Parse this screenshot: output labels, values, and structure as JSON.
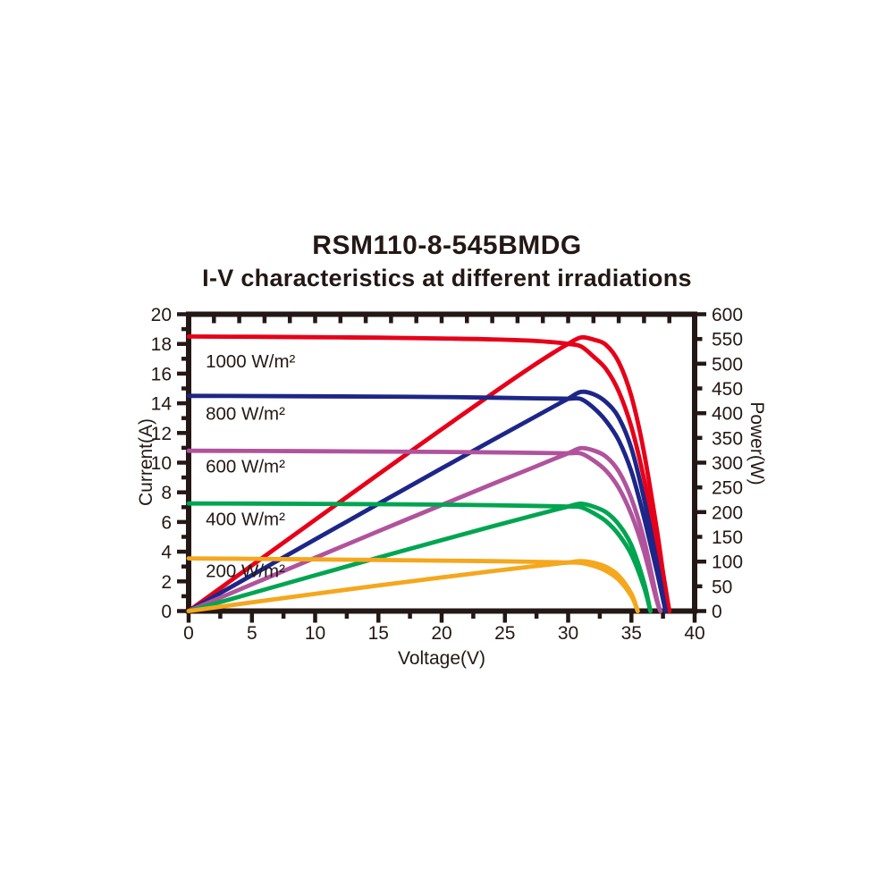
{
  "title": "RSM110-8-545BMDG",
  "subtitle": "I-V characteristics at different irradiations",
  "chart_data": {
    "type": "line",
    "title": "RSM110-8-545BMDG",
    "subtitle": "I-V characteristics at different irradiations",
    "xlabel": "Voltage(V)",
    "ylabel_left": "Current(A)",
    "ylabel_right": "Power(W)",
    "xlim": [
      0,
      40
    ],
    "ylim_left": [
      0,
      20
    ],
    "ylim_right": [
      0,
      600
    ],
    "grid": false,
    "frame_color": "#231815",
    "x_major_ticks": [
      0,
      5,
      10,
      15,
      20,
      25,
      30,
      35,
      40
    ],
    "x_minor_step": 2.5,
    "top_tick_step": 2,
    "y_left_major_ticks": [
      0,
      2,
      4,
      6,
      8,
      10,
      12,
      14,
      16,
      18,
      20
    ],
    "y_left_minor_step": 1,
    "y_right_ticks": [
      0,
      50,
      100,
      150,
      200,
      250,
      300,
      350,
      400,
      450,
      500,
      550,
      600
    ],
    "y_right_major_step": 100,
    "power_axis_watts_per_current_unit": 30,
    "curves_note": "Each irradiance has two curves of the same color: an I-V curve (current vs voltage, left axis) and a P-V curve (power = V x I, right axis) rising from the origin, peaking near 31 V, and falling to zero at Voc.",
    "series": [
      {
        "name": "1000 W/m²",
        "irradiance_w_m2": 1000,
        "color": "#e60019",
        "isc_a": 18.5,
        "voc_v": 38.0,
        "pmax_w": 553,
        "vmp_v": 31,
        "label_pos": {
          "v": 1.35,
          "i": 16.85
        },
        "iv_points": [
          [
            0,
            18.5
          ],
          [
            5,
            18.48
          ],
          [
            10,
            18.45
          ],
          [
            15,
            18.42
          ],
          [
            20,
            18.37
          ],
          [
            24,
            18.31
          ],
          [
            27,
            18.22
          ],
          [
            29,
            18.1
          ],
          [
            30,
            18.0
          ],
          [
            31,
            17.84
          ],
          [
            32,
            17.15
          ],
          [
            33,
            16.3
          ],
          [
            34,
            14.8
          ],
          [
            35,
            12.4
          ],
          [
            36,
            8.9
          ],
          [
            37,
            4.5
          ],
          [
            37.5,
            2.1
          ],
          [
            38,
            0
          ]
        ],
        "pv_points": [
          [
            0,
            0
          ],
          [
            5,
            92.4
          ],
          [
            10,
            184.5
          ],
          [
            15,
            276.3
          ],
          [
            20,
            367.4
          ],
          [
            24,
            439.4
          ],
          [
            27,
            491.9
          ],
          [
            29,
            524.9
          ],
          [
            30,
            540.0
          ],
          [
            31,
            553.0
          ],
          [
            32,
            548.8
          ],
          [
            33,
            537.9
          ],
          [
            34,
            503.2
          ],
          [
            35,
            434.0
          ],
          [
            36,
            320.4
          ],
          [
            37,
            166.5
          ],
          [
            37.5,
            78.8
          ],
          [
            38,
            0
          ]
        ]
      },
      {
        "name": "800 W/m²",
        "irradiance_w_m2": 800,
        "color": "#1d2688",
        "isc_a": 14.5,
        "voc_v": 37.7,
        "pmax_w": 443,
        "vmp_v": 31,
        "label_pos": {
          "v": 1.35,
          "i": 13.3
        },
        "iv_points": [
          [
            0,
            14.5
          ],
          [
            5,
            14.49
          ],
          [
            10,
            14.47
          ],
          [
            15,
            14.45
          ],
          [
            20,
            14.42
          ],
          [
            24,
            14.38
          ],
          [
            27,
            14.34
          ],
          [
            29,
            14.32
          ],
          [
            30,
            14.31
          ],
          [
            31,
            14.29
          ],
          [
            32,
            13.7
          ],
          [
            33,
            12.8
          ],
          [
            34,
            11.5
          ],
          [
            35,
            9.4
          ],
          [
            36,
            6.3
          ],
          [
            37,
            2.7
          ],
          [
            37.7,
            0
          ]
        ],
        "pv_points": [
          [
            0,
            0
          ],
          [
            5,
            72.5
          ],
          [
            10,
            144.7
          ],
          [
            15,
            216.8
          ],
          [
            20,
            288.4
          ],
          [
            24,
            345.1
          ],
          [
            27,
            387.2
          ],
          [
            29,
            415.3
          ],
          [
            30,
            429.3
          ],
          [
            31,
            443.0
          ],
          [
            32,
            438.4
          ],
          [
            33,
            422.4
          ],
          [
            34,
            391.0
          ],
          [
            35,
            329.0
          ],
          [
            36,
            226.8
          ],
          [
            37,
            99.9
          ],
          [
            37.7,
            0
          ]
        ]
      },
      {
        "name": "600 W/m²",
        "irradiance_w_m2": 600,
        "color": "#b0539c",
        "isc_a": 10.8,
        "voc_v": 37.3,
        "pmax_w": 329,
        "vmp_v": 31,
        "label_pos": {
          "v": 1.35,
          "i": 9.75
        },
        "iv_points": [
          [
            0,
            10.8
          ],
          [
            5,
            10.79
          ],
          [
            10,
            10.77
          ],
          [
            15,
            10.75
          ],
          [
            20,
            10.72
          ],
          [
            24,
            10.69
          ],
          [
            27,
            10.66
          ],
          [
            29,
            10.64
          ],
          [
            30,
            10.63
          ],
          [
            31,
            10.62
          ],
          [
            32,
            10.15
          ],
          [
            33,
            9.45
          ],
          [
            34,
            8.3
          ],
          [
            35,
            6.5
          ],
          [
            36,
            4.0
          ],
          [
            37,
            0.7
          ],
          [
            37.3,
            0
          ]
        ],
        "pv_points": [
          [
            0,
            0
          ],
          [
            5,
            54.0
          ],
          [
            10,
            107.7
          ],
          [
            15,
            161.3
          ],
          [
            20,
            214.4
          ],
          [
            24,
            256.6
          ],
          [
            27,
            287.8
          ],
          [
            29,
            308.6
          ],
          [
            30,
            318.9
          ],
          [
            31,
            329.2
          ],
          [
            32,
            324.8
          ],
          [
            33,
            311.9
          ],
          [
            34,
            282.2
          ],
          [
            35,
            227.5
          ],
          [
            36,
            144.0
          ],
          [
            37,
            25.9
          ],
          [
            37.3,
            0
          ]
        ]
      },
      {
        "name": "400 W/m²",
        "irradiance_w_m2": 400,
        "color": "#00a551",
        "isc_a": 7.25,
        "voc_v": 36.5,
        "pmax_w": 217,
        "vmp_v": 31,
        "label_pos": {
          "v": 1.35,
          "i": 6.2
        },
        "iv_points": [
          [
            0,
            7.25
          ],
          [
            5,
            7.24
          ],
          [
            10,
            7.22
          ],
          [
            15,
            7.2
          ],
          [
            20,
            7.17
          ],
          [
            24,
            7.13
          ],
          [
            27,
            7.09
          ],
          [
            29,
            7.06
          ],
          [
            30,
            7.04
          ],
          [
            31,
            7.0
          ],
          [
            32,
            6.6
          ],
          [
            33,
            6.05
          ],
          [
            34,
            5.15
          ],
          [
            35,
            3.8
          ],
          [
            36,
            1.6
          ],
          [
            36.5,
            0
          ]
        ],
        "pv_points": [
          [
            0,
            0
          ],
          [
            5,
            36.2
          ],
          [
            10,
            72.2
          ],
          [
            15,
            108.0
          ],
          [
            20,
            143.4
          ],
          [
            24,
            171.1
          ],
          [
            27,
            191.4
          ],
          [
            29,
            204.7
          ],
          [
            30,
            211.2
          ],
          [
            31,
            217.0
          ],
          [
            32,
            211.2
          ],
          [
            33,
            199.7
          ],
          [
            34,
            175.1
          ],
          [
            35,
            133.0
          ],
          [
            36,
            57.6
          ],
          [
            36.5,
            0
          ]
        ]
      },
      {
        "name": "200 W/m²",
        "irradiance_w_m2": 200,
        "color": "#f5a71d",
        "isc_a": 3.55,
        "voc_v": 35.5,
        "pmax_w": 101,
        "vmp_v": 30.5,
        "label_pos": {
          "v": 1.35,
          "i": 2.7
        },
        "iv_points": [
          [
            0,
            3.55
          ],
          [
            5,
            3.52
          ],
          [
            10,
            3.48
          ],
          [
            15,
            3.44
          ],
          [
            20,
            3.4
          ],
          [
            24,
            3.36
          ],
          [
            27,
            3.32
          ],
          [
            29,
            3.29
          ],
          [
            30,
            3.27
          ],
          [
            31,
            3.25
          ],
          [
            32,
            3.05
          ],
          [
            33,
            2.7
          ],
          [
            34,
            2.1
          ],
          [
            35,
            1.0
          ],
          [
            35.5,
            0
          ]
        ],
        "pv_points": [
          [
            0,
            0
          ],
          [
            5,
            17.6
          ],
          [
            10,
            34.8
          ],
          [
            15,
            51.6
          ],
          [
            20,
            68.0
          ],
          [
            24,
            80.6
          ],
          [
            27,
            89.6
          ],
          [
            29,
            95.4
          ],
          [
            30,
            98.1
          ],
          [
            31,
            100.8
          ],
          [
            32,
            97.6
          ],
          [
            33,
            89.1
          ],
          [
            34,
            71.4
          ],
          [
            35,
            35.0
          ],
          [
            35.5,
            0
          ]
        ]
      }
    ]
  }
}
